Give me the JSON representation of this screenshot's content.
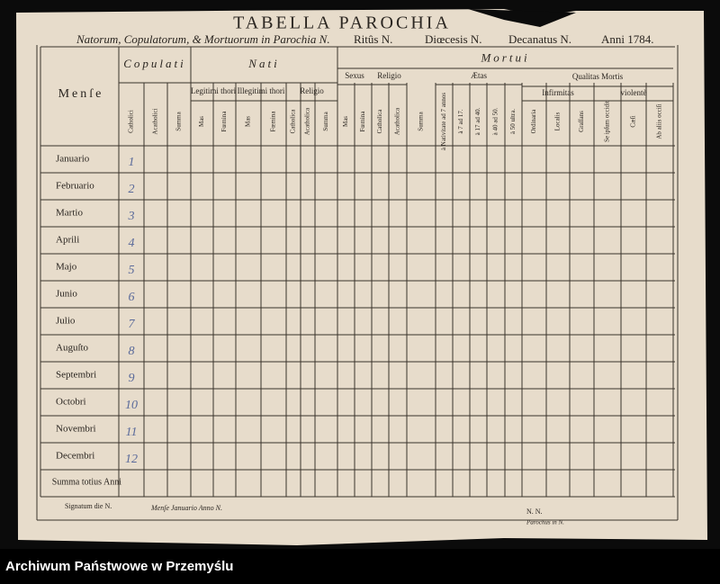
{
  "header": {
    "title": "TABELLA PAROCHIA",
    "subtitle": {
      "intro": "Natorum, Copulatorum, & Mortuorum in Parochia N.",
      "ritus": "Ritûs N.",
      "dioecesis": "Diœcesis N.",
      "decanatus": "Decanatus N.",
      "anni": "Anni 1784."
    }
  },
  "table": {
    "mense_header": "Menſe",
    "groups": [
      "Copulati",
      "Nati",
      "Legitimi thori",
      "Illegitimi thori",
      "Religio",
      "Mortui",
      "Sexus",
      "Religio",
      "Ætas",
      "Qualitas Mortis",
      "Infirmitas",
      "violentè"
    ],
    "columns": [
      "Catholici",
      "Acatholici",
      "Summa",
      "Mas",
      "Fœmina",
      "Mas",
      "Fœmina",
      "Catholica",
      "Acatholica",
      "Summa",
      "Mas",
      "Fœmina",
      "Catholica",
      "Acatholica",
      "Summa",
      "à Nativitate ad 7 annos",
      "à 7 ad 17.",
      "à 17 ad 40.",
      "à 40 ad 50.",
      "à 50 ultra.",
      "Ordinaria",
      "Localis",
      "Graſſans",
      "Se ipſum occidit",
      "Cæſi",
      "Ab aliis occiſi"
    ],
    "rows": [
      {
        "month": "Januario",
        "number": 1
      },
      {
        "month": "Februario",
        "number": 2
      },
      {
        "month": "Martio",
        "number": 3
      },
      {
        "month": "Aprili",
        "number": 4
      },
      {
        "month": "Majo",
        "number": 5
      },
      {
        "month": "Junio",
        "number": 6
      },
      {
        "month": "Julio",
        "number": 7
      },
      {
        "month": "Auguſto",
        "number": 8
      },
      {
        "month": "Septembri",
        "number": 9
      },
      {
        "month": "Octobri",
        "number": 10
      },
      {
        "month": "Novembri",
        "number": 11
      },
      {
        "month": "Decembri",
        "number": 12
      }
    ],
    "total_row": "Summa totius Anni"
  },
  "footer": {
    "signatum": "Signatum die N.",
    "mense": "Menſe Januario Anno N.",
    "nn": "N.   N.",
    "parochus": "Parochus in N."
  },
  "caption": "Archiwum Państwowe w Przemyślu"
}
